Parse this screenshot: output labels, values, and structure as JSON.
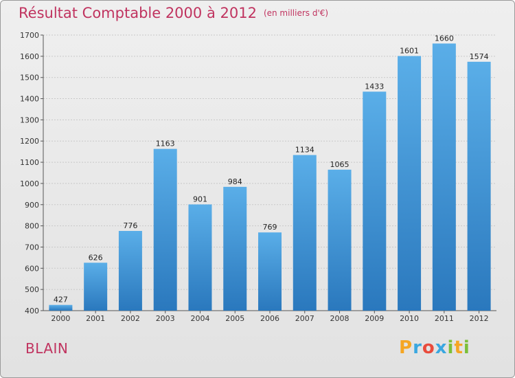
{
  "chart_data": {
    "type": "bar",
    "title": "Résultat Comptable 2000 à 2012",
    "subtitle": "(en milliers d'€)",
    "categories": [
      "2000",
      "2001",
      "2002",
      "2003",
      "2004",
      "2005",
      "2006",
      "2007",
      "2008",
      "2009",
      "2010",
      "2011",
      "2012"
    ],
    "values": [
      427,
      626,
      776,
      1163,
      901,
      984,
      769,
      1134,
      1065,
      1433,
      1601,
      1660,
      1574
    ],
    "ylim": [
      400,
      1700
    ],
    "yticks": [
      400,
      500,
      600,
      700,
      800,
      900,
      1000,
      1100,
      1200,
      1300,
      1400,
      1500,
      1600,
      1700
    ],
    "xlabel": "",
    "ylabel": "",
    "grid": true,
    "bar_color": "#3d93d6"
  },
  "commune": "BLAIN",
  "logo": {
    "letters": [
      "P",
      "r",
      "o",
      "x",
      "i",
      "t",
      "i"
    ],
    "colors": [
      "#f5a623",
      "#3aa7e0",
      "#e94b3c",
      "#3aa7e0",
      "#7bbf3a",
      "#f5a623",
      "#7bbf3a"
    ]
  }
}
